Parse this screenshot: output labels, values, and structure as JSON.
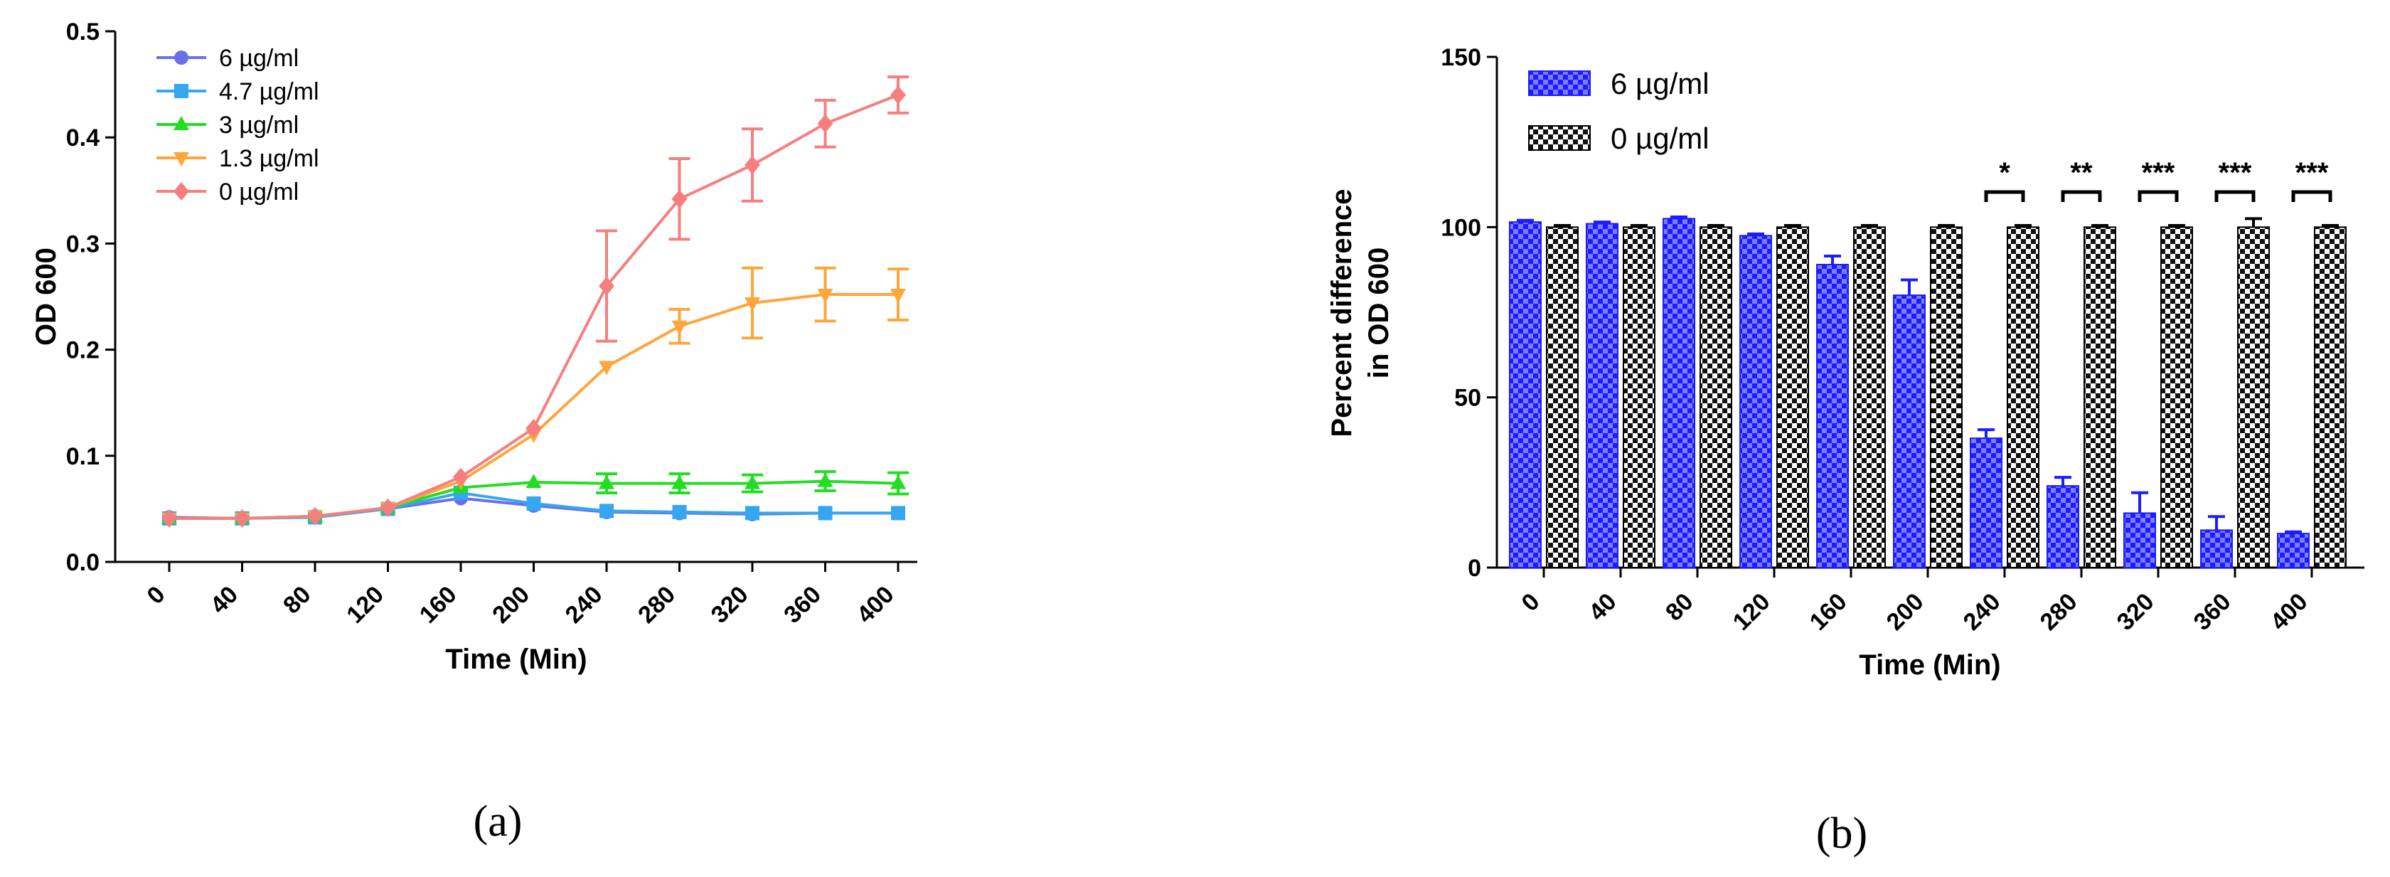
{
  "chart_data": [
    {
      "panel_label": "(a)",
      "type": "line",
      "xlabel": "Time (Min)",
      "ylabel": "OD 600",
      "ylim": [
        0,
        0.5
      ],
      "yticks": [
        "0.0",
        "0.1",
        "0.2",
        "0.3",
        "0.4",
        "0.5"
      ],
      "categories": [
        "0",
        "40",
        "80",
        "120",
        "160",
        "200",
        "240",
        "280",
        "320",
        "360",
        "400"
      ],
      "legend_position": "top-left",
      "series": [
        {
          "name": "6 µg/ml",
          "color": "#6b6fe6",
          "marker": "circle",
          "values": [
            0.042,
            0.041,
            0.043,
            0.05,
            0.06,
            0.053,
            0.047,
            0.046,
            0.045,
            0.046,
            0.046
          ],
          "errors": [
            0.002,
            0.002,
            0.002,
            0.002,
            0.003,
            0.002,
            0.002,
            0.002,
            0.002,
            0.002,
            0.002
          ]
        },
        {
          "name": "4.7 µg/ml",
          "color": "#35a6f0",
          "marker": "square",
          "values": [
            0.041,
            0.041,
            0.042,
            0.05,
            0.065,
            0.055,
            0.048,
            0.047,
            0.046,
            0.046,
            0.046
          ],
          "errors": [
            0.002,
            0.002,
            0.002,
            0.002,
            0.003,
            0.003,
            0.004,
            0.003,
            0.003,
            0.003,
            0.003
          ]
        },
        {
          "name": "3 µg/ml",
          "color": "#22dd22",
          "marker": "triangle-up",
          "values": [
            0.041,
            0.041,
            0.043,
            0.051,
            0.07,
            0.075,
            0.074,
            0.074,
            0.074,
            0.076,
            0.074
          ],
          "errors": [
            0.002,
            0.002,
            0.002,
            0.002,
            0.003,
            0.003,
            0.009,
            0.009,
            0.008,
            0.009,
            0.01
          ]
        },
        {
          "name": "1.3 µg/ml",
          "color": "#ffa53a",
          "marker": "triangle-down",
          "values": [
            0.041,
            0.041,
            0.043,
            0.051,
            0.076,
            0.12,
            0.184,
            0.222,
            0.244,
            0.252,
            0.252
          ],
          "errors": [
            0.002,
            0.002,
            0.002,
            0.002,
            0.003,
            0.003,
            0.003,
            0.016,
            0.033,
            0.025,
            0.024
          ]
        },
        {
          "name": "0 µg/ml",
          "color": "#f77e7e",
          "marker": "diamond",
          "values": [
            0.041,
            0.041,
            0.043,
            0.051,
            0.08,
            0.126,
            0.26,
            0.342,
            0.374,
            0.413,
            0.44
          ],
          "errors": [
            0.002,
            0.002,
            0.002,
            0.002,
            0.004,
            0.004,
            0.052,
            0.038,
            0.034,
            0.022,
            0.017
          ]
        }
      ]
    },
    {
      "panel_label": "(b)",
      "type": "bar",
      "xlabel": "Time (Min)",
      "ylabel_line1": "Percent difference",
      "ylabel_line2": "in OD 600",
      "ylim": [
        0,
        150
      ],
      "yticks": [
        "0",
        "50",
        "100",
        "150"
      ],
      "categories": [
        "0",
        "40",
        "80",
        "120",
        "160",
        "200",
        "240",
        "280",
        "320",
        "360",
        "400"
      ],
      "legend_position": "top-left",
      "series": [
        {
          "name": "6 µg/ml",
          "color": "#1c1cff",
          "pattern": "blue-check",
          "values": [
            101.5,
            101,
            102.5,
            97.5,
            89,
            80,
            38,
            24,
            16,
            11,
            10
          ],
          "errors": [
            0.5,
            0.5,
            0.5,
            0.5,
            2.5,
            4.5,
            2.5,
            2.5,
            6,
            4,
            0.5
          ]
        },
        {
          "name": "0 µg/ml",
          "color": "#000000",
          "pattern": "black-check",
          "values": [
            100,
            100,
            100,
            100,
            100,
            100,
            100,
            100,
            100,
            100,
            100
          ],
          "errors": [
            0.5,
            0.5,
            0.5,
            0.5,
            0.5,
            0.5,
            0.5,
            0.5,
            0.5,
            2.5,
            0.5
          ]
        }
      ],
      "significance": [
        "",
        "",
        "",
        "",
        "",
        "",
        "*",
        "**",
        "***",
        "***",
        "***"
      ]
    }
  ]
}
